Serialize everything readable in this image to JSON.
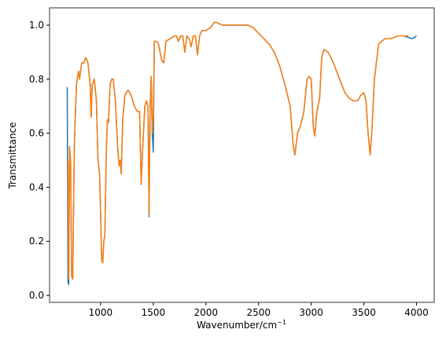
{
  "chart_data": {
    "type": "line",
    "xlabel": {
      "text": "Wavenumber/cm",
      "superscript": "−1"
    },
    "ylabel": "Transmittance",
    "xlim": [
      515,
      4168
    ],
    "ylim": [
      -0.026,
      1.064
    ],
    "xticks": [
      1000,
      1500,
      2000,
      2500,
      3000,
      3500,
      4000
    ],
    "yticks": [
      {
        "value": 0,
        "label": "0.0"
      },
      {
        "value": 0.2,
        "label": "0.2"
      },
      {
        "value": 0.4,
        "label": "0.4"
      },
      {
        "value": 0.6,
        "label": "0.6"
      },
      {
        "value": 0.8,
        "label": "0.8"
      },
      {
        "value": 1,
        "label": "1.0"
      }
    ],
    "x": [
      683,
      690,
      697,
      705,
      715,
      725,
      735,
      750,
      770,
      790,
      800,
      820,
      840,
      860,
      880,
      900,
      910,
      920,
      940,
      960,
      975,
      990,
      1000,
      1010,
      1020,
      1030,
      1040,
      1055,
      1065,
      1075,
      1090,
      1105,
      1120,
      1140,
      1160,
      1175,
      1185,
      1195,
      1210,
      1230,
      1260,
      1290,
      1320,
      1350,
      1370,
      1385,
      1400,
      1420,
      1435,
      1450,
      1460,
      1470,
      1480,
      1490,
      1500,
      1510,
      1530,
      1550,
      1580,
      1600,
      1620,
      1660,
      1700,
      1720,
      1740,
      1760,
      1780,
      1800,
      1820,
      1840,
      1860,
      1880,
      1900,
      1920,
      1940,
      1960,
      2000,
      2040,
      2080,
      2100,
      2160,
      2250,
      2350,
      2400,
      2450,
      2500,
      2550,
      2600,
      2650,
      2700,
      2750,
      2800,
      2830,
      2845,
      2870,
      2900,
      2930,
      2960,
      2980,
      3000,
      3020,
      3035,
      3050,
      3080,
      3100,
      3120,
      3160,
      3200,
      3240,
      3280,
      3320,
      3360,
      3400,
      3440,
      3470,
      3500,
      3520,
      3540,
      3560,
      3575,
      3600,
      3640,
      3700,
      3760,
      3820,
      3880,
      3920,
      3960,
      4000
    ],
    "series": [
      {
        "color": "#1f77b4",
        "values": [
          0.77,
          0.05,
          0.04,
          0.55,
          0.5,
          0.07,
          0.06,
          0.55,
          0.78,
          0.83,
          0.8,
          0.86,
          0.86,
          0.88,
          0.86,
          0.78,
          0.66,
          0.78,
          0.8,
          0.72,
          0.5,
          0.45,
          0.3,
          0.13,
          0.12,
          0.2,
          0.22,
          0.55,
          0.65,
          0.64,
          0.78,
          0.8,
          0.8,
          0.72,
          0.56,
          0.48,
          0.5,
          0.45,
          0.65,
          0.74,
          0.76,
          0.74,
          0.7,
          0.68,
          0.68,
          0.41,
          0.55,
          0.7,
          0.72,
          0.7,
          0.29,
          0.7,
          0.81,
          0.6,
          0.53,
          0.94,
          0.94,
          0.93,
          0.87,
          0.86,
          0.94,
          0.95,
          0.96,
          0.96,
          0.94,
          0.96,
          0.96,
          0.9,
          0.96,
          0.95,
          0.92,
          0.96,
          0.96,
          0.89,
          0.96,
          0.98,
          0.98,
          0.99,
          1.01,
          1.01,
          1,
          1,
          1,
          1,
          0.99,
          0.97,
          0.95,
          0.93,
          0.9,
          0.85,
          0.78,
          0.7,
          0.55,
          0.52,
          0.6,
          0.63,
          0.68,
          0.8,
          0.81,
          0.8,
          0.62,
          0.59,
          0.67,
          0.73,
          0.88,
          0.91,
          0.9,
          0.87,
          0.83,
          0.79,
          0.75,
          0.73,
          0.72,
          0.72,
          0.74,
          0.75,
          0.72,
          0.6,
          0.52,
          0.6,
          0.8,
          0.93,
          0.95,
          0.95,
          0.96,
          0.96,
          0.955,
          0.95,
          0.96
        ]
      },
      {
        "color": "#ff7f0e",
        "values": [
          null,
          0.5,
          0.06,
          0.55,
          0.5,
          0.07,
          0.06,
          0.55,
          0.78,
          0.83,
          0.8,
          0.86,
          0.86,
          0.88,
          0.86,
          0.78,
          0.66,
          0.78,
          0.8,
          0.72,
          0.5,
          0.45,
          0.3,
          0.13,
          0.12,
          0.2,
          0.22,
          0.55,
          0.65,
          0.64,
          0.78,
          0.8,
          0.8,
          0.72,
          0.56,
          0.48,
          0.5,
          0.45,
          0.65,
          0.74,
          0.76,
          0.74,
          0.7,
          0.68,
          0.68,
          0.41,
          0.55,
          0.7,
          0.72,
          0.7,
          0.3,
          0.7,
          0.81,
          0.6,
          0.66,
          0.94,
          0.94,
          0.93,
          0.87,
          0.86,
          0.94,
          0.95,
          0.96,
          0.96,
          0.94,
          0.96,
          0.96,
          0.9,
          0.96,
          0.95,
          0.92,
          0.96,
          0.96,
          0.89,
          0.96,
          0.98,
          0.98,
          0.99,
          1.01,
          1.01,
          1,
          1,
          1,
          1,
          0.99,
          0.97,
          0.95,
          0.93,
          0.9,
          0.85,
          0.78,
          0.7,
          0.55,
          0.52,
          0.6,
          0.63,
          0.68,
          0.8,
          0.81,
          0.8,
          0.62,
          0.59,
          0.67,
          0.73,
          0.88,
          0.91,
          0.9,
          0.87,
          0.83,
          0.79,
          0.75,
          0.73,
          0.72,
          0.72,
          0.74,
          0.75,
          0.72,
          0.6,
          0.52,
          0.6,
          0.8,
          0.93,
          0.95,
          0.95,
          0.96,
          0.96,
          0.96,
          null,
          null
        ]
      }
    ]
  }
}
